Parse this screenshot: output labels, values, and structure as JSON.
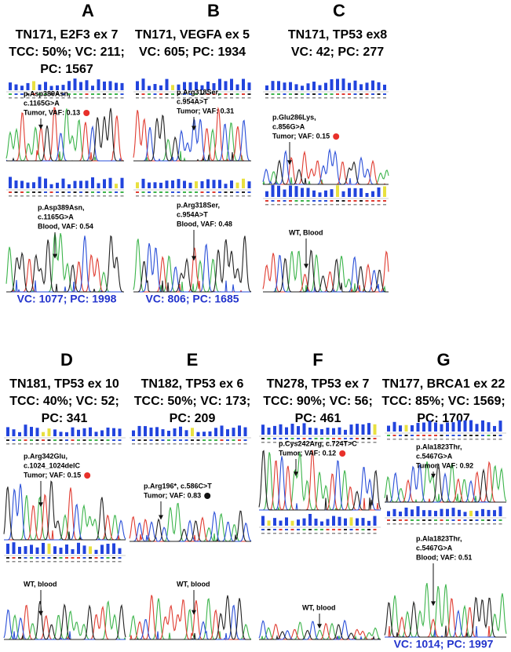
{
  "panels": [
    {
      "letter": "A",
      "title_lines": [
        "TN171, E2F3 ex 7",
        "TCC: 50%; VC: 211;",
        "PC: 1567"
      ],
      "tumor": {
        "lines": [
          "p.Asp389Asn,",
          "c.1165G>A",
          "Tumor, VAF: 0.13"
        ],
        "dot": "#e8302a"
      },
      "blood": {
        "lines": [
          "p.Asp389Asn,",
          "c.1165G>A",
          "Blood, VAF: 0.54"
        ]
      },
      "footer": "VC: 1077; PC: 1998"
    },
    {
      "letter": "B",
      "title_lines": [
        "TN171, VEGFA ex 5",
        "VC: 605; PC: 1934"
      ],
      "tumor": {
        "lines": [
          "p.Arg318Ser,",
          "c.954A>T",
          "Tumor; VAF: 0.31"
        ]
      },
      "blood": {
        "lines": [
          "p.Arg318Ser,",
          "c.954A>T",
          "Blood, VAF: 0.48"
        ]
      },
      "footer": "VC: 806; PC: 1685"
    },
    {
      "letter": "C",
      "title_lines": [
        "TN171, TP53 ex8",
        "VC: 42; PC: 277"
      ],
      "tumor": {
        "lines": [
          "p.Glu286Lys,",
          "c.856G>A",
          "Tumor; VAF: 0.15"
        ],
        "dot": "#e8302a"
      },
      "blood": {
        "lines": [
          "WT, Blood"
        ]
      }
    },
    {
      "letter": "D",
      "title_lines": [
        "TN181, TP53 ex 10",
        "TCC: 40%; VC: 52;",
        "PC: 341"
      ],
      "tumor": {
        "lines": [
          "p.Arg342Glu,",
          "c.1024_1024delC",
          "Tumor; VAF: 0.15"
        ],
        "dot": "#e8302a"
      },
      "blood": {
        "lines": [
          "WT, blood"
        ]
      }
    },
    {
      "letter": "E",
      "title_lines": [
        "TN182, TP53 ex 6",
        "TCC: 50%; VC: 173;",
        "PC: 209"
      ],
      "tumor": {
        "lines": [
          "p.Arg196*, c.586C>T",
          "Tumor; VAF: 0.83"
        ],
        "dot": "#111111"
      },
      "blood": {
        "lines": [
          "WT, blood"
        ]
      }
    },
    {
      "letter": "F",
      "title_lines": [
        "TN278, TP53 ex 7",
        "TCC: 90%; VC: 56;",
        "PC: 461"
      ],
      "tumor": {
        "lines": [
          "p.Cys242Arg, c.724T>C",
          "Tumor; VAF: 0.12"
        ],
        "dot": "#e8302a"
      },
      "blood": {
        "lines": [
          "WT, blood"
        ]
      }
    },
    {
      "letter": "G",
      "title_lines": [
        "TN177, BRCA1 ex 22",
        "TCC: 85%; VC: 1569;",
        "PC: 1707"
      ],
      "tumor": {
        "lines": [
          "p.Ala1823Thr,",
          "c.5467G>A",
          "Tumor; VAF: 0.92"
        ]
      },
      "blood": {
        "lines": [
          "p.Ala1823Thr,",
          "c.5467G>A",
          "Blood; VAF: 0.51"
        ]
      },
      "footer": "VC: 1014; PC: 1997"
    }
  ]
}
